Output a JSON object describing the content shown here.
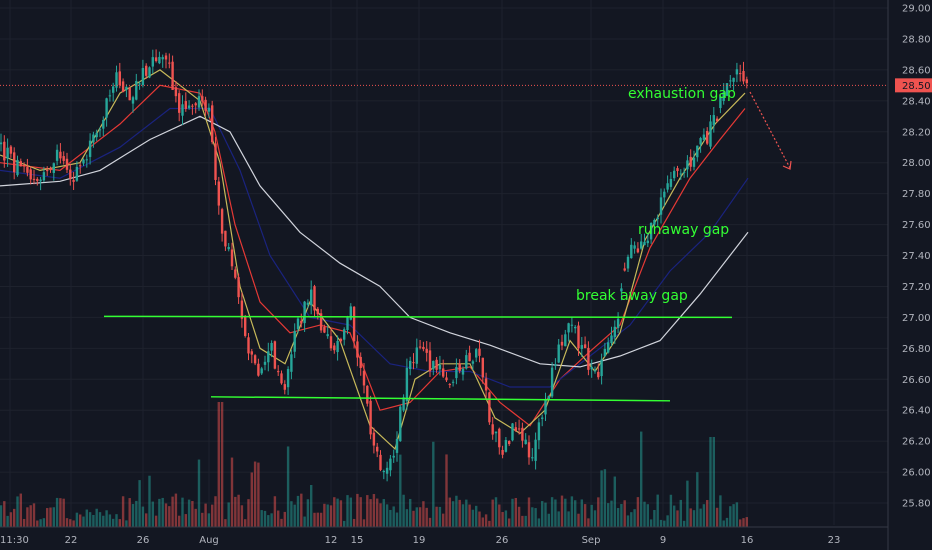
{
  "chart_data": {
    "type": "candlestick",
    "title": "",
    "ylim": [
      25.6,
      29.05
    ],
    "y_ticks": [
      "25.80",
      "26.00",
      "26.20",
      "26.40",
      "26.60",
      "26.80",
      "27.00",
      "27.20",
      "27.40",
      "27.60",
      "27.80",
      "28.00",
      "28.20",
      "28.40",
      "28.60",
      "28.80",
      "29.00"
    ],
    "x_tick_labels": [
      "11:30",
      "22",
      "26",
      "Aug",
      "12",
      "15",
      "19",
      "26",
      "Sep",
      "9",
      "16",
      "23"
    ],
    "current_price": "28.50",
    "grid": true,
    "annotations": [
      {
        "text": "exhaustion gap"
      },
      {
        "text": "runaway gap"
      },
      {
        "text": "break away gap"
      }
    ],
    "horizontal_lines": [
      {
        "name": "resistance",
        "value": 27.0
      },
      {
        "name": "support",
        "value": 26.48
      }
    ],
    "price_path": [
      [
        0,
        28.1
      ],
      [
        20,
        27.95
      ],
      [
        35,
        27.85
      ],
      [
        55,
        28.05
      ],
      [
        75,
        27.9
      ],
      [
        95,
        28.15
      ],
      [
        115,
        28.55
      ],
      [
        130,
        28.4
      ],
      [
        150,
        28.65
      ],
      [
        165,
        28.7
      ],
      [
        180,
        28.35
      ],
      [
        200,
        28.45
      ],
      [
        210,
        28.3
      ],
      [
        220,
        27.6
      ],
      [
        235,
        27.3
      ],
      [
        245,
        26.9
      ],
      [
        258,
        26.6
      ],
      [
        270,
        26.85
      ],
      [
        282,
        26.5
      ],
      [
        295,
        26.9
      ],
      [
        310,
        27.15
      ],
      [
        322,
        26.95
      ],
      [
        335,
        26.8
      ],
      [
        350,
        27.05
      ],
      [
        362,
        26.6
      ],
      [
        372,
        26.2
      ],
      [
        382,
        26.05
      ],
      [
        395,
        26.1
      ],
      [
        405,
        26.6
      ],
      [
        420,
        26.8
      ],
      [
        435,
        26.65
      ],
      [
        450,
        26.6
      ],
      [
        465,
        26.7
      ],
      [
        480,
        26.75
      ],
      [
        490,
        26.3
      ],
      [
        502,
        26.15
      ],
      [
        515,
        26.3
      ],
      [
        530,
        26.1
      ],
      [
        545,
        26.4
      ],
      [
        558,
        26.8
      ],
      [
        572,
        26.95
      ],
      [
        585,
        26.75
      ],
      [
        595,
        26.6
      ],
      [
        605,
        26.75
      ],
      [
        615,
        26.9
      ],
      [
        625,
        27.35
      ],
      [
        640,
        27.5
      ],
      [
        655,
        27.6
      ],
      [
        665,
        27.85
      ],
      [
        680,
        27.95
      ],
      [
        695,
        28.05
      ],
      [
        710,
        28.2
      ],
      [
        722,
        28.4
      ],
      [
        738,
        28.58
      ],
      [
        748,
        28.5
      ]
    ],
    "ma_series": [
      {
        "color": "#e53935",
        "points": [
          [
            0,
            28.0
          ],
          [
            60,
            27.95
          ],
          [
            120,
            28.25
          ],
          [
            160,
            28.5
          ],
          [
            200,
            28.45
          ],
          [
            215,
            28.2
          ],
          [
            235,
            27.6
          ],
          [
            260,
            27.1
          ],
          [
            290,
            26.9
          ],
          [
            320,
            26.95
          ],
          [
            350,
            26.9
          ],
          [
            380,
            26.4
          ],
          [
            410,
            26.45
          ],
          [
            440,
            26.65
          ],
          [
            470,
            26.68
          ],
          [
            500,
            26.45
          ],
          [
            530,
            26.3
          ],
          [
            560,
            26.6
          ],
          [
            590,
            26.78
          ],
          [
            620,
            26.95
          ],
          [
            650,
            27.45
          ],
          [
            690,
            27.9
          ],
          [
            720,
            28.15
          ],
          [
            745,
            28.35
          ]
        ]
      },
      {
        "color": "#1a237e",
        "points": [
          [
            0,
            27.95
          ],
          [
            60,
            27.9
          ],
          [
            120,
            28.1
          ],
          [
            170,
            28.35
          ],
          [
            210,
            28.35
          ],
          [
            240,
            27.95
          ],
          [
            270,
            27.4
          ],
          [
            310,
            27.0
          ],
          [
            350,
            26.95
          ],
          [
            390,
            26.7
          ],
          [
            430,
            26.65
          ],
          [
            470,
            26.65
          ],
          [
            510,
            26.55
          ],
          [
            550,
            26.55
          ],
          [
            590,
            26.75
          ],
          [
            630,
            26.95
          ],
          [
            670,
            27.3
          ],
          [
            710,
            27.55
          ],
          [
            748,
            27.9
          ]
        ]
      },
      {
        "color": "#d1d4dc",
        "points": [
          [
            0,
            27.85
          ],
          [
            60,
            27.88
          ],
          [
            100,
            27.95
          ],
          [
            150,
            28.15
          ],
          [
            200,
            28.3
          ],
          [
            230,
            28.2
          ],
          [
            260,
            27.85
          ],
          [
            300,
            27.55
          ],
          [
            340,
            27.35
          ],
          [
            380,
            27.2
          ],
          [
            410,
            27.0
          ],
          [
            450,
            26.9
          ],
          [
            490,
            26.82
          ],
          [
            540,
            26.7
          ],
          [
            580,
            26.68
          ],
          [
            620,
            26.75
          ],
          [
            660,
            26.85
          ],
          [
            700,
            27.15
          ],
          [
            730,
            27.4
          ],
          [
            748,
            27.55
          ]
        ]
      },
      {
        "color": "#c7b95a",
        "points": [
          [
            0,
            28.05
          ],
          [
            40,
            27.95
          ],
          [
            80,
            28.0
          ],
          [
            120,
            28.45
          ],
          [
            160,
            28.6
          ],
          [
            200,
            28.4
          ],
          [
            220,
            28.0
          ],
          [
            240,
            27.2
          ],
          [
            260,
            26.8
          ],
          [
            285,
            26.7
          ],
          [
            310,
            27.1
          ],
          [
            340,
            26.85
          ],
          [
            370,
            26.3
          ],
          [
            395,
            26.15
          ],
          [
            415,
            26.6
          ],
          [
            440,
            26.7
          ],
          [
            470,
            26.7
          ],
          [
            495,
            26.35
          ],
          [
            520,
            26.25
          ],
          [
            545,
            26.4
          ],
          [
            570,
            26.85
          ],
          [
            595,
            26.65
          ],
          [
            620,
            26.9
          ],
          [
            645,
            27.5
          ],
          [
            680,
            27.9
          ],
          [
            715,
            28.25
          ],
          [
            745,
            28.45
          ]
        ]
      }
    ]
  }
}
